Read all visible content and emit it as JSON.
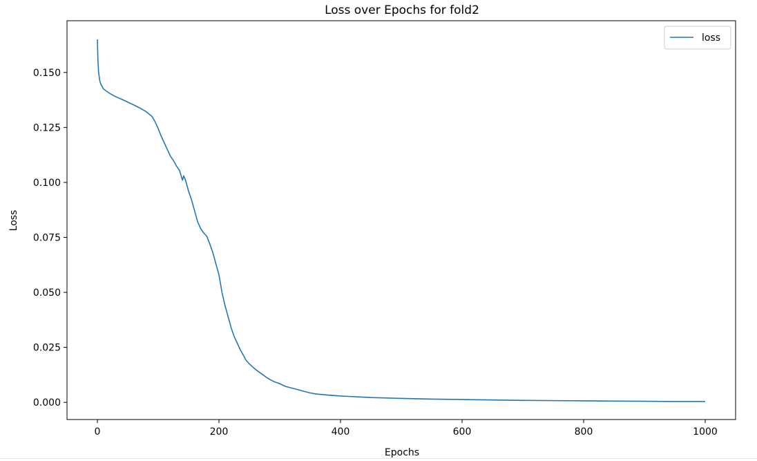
{
  "chart_data": {
    "type": "line",
    "title": "Loss over Epochs for fold2",
    "xlabel": "Epochs",
    "ylabel": "Loss",
    "xlim": [
      -50,
      1050
    ],
    "ylim": [
      -0.0078,
      0.1735
    ],
    "xticks": [
      0,
      200,
      400,
      600,
      800,
      1000
    ],
    "yticks": [
      0.0,
      0.025,
      0.05,
      0.075,
      0.1,
      0.125,
      0.15
    ],
    "xtick_labels": [
      "0",
      "200",
      "400",
      "600",
      "800",
      "1000"
    ],
    "ytick_labels": [
      "0.000",
      "0.025",
      "0.050",
      "0.075",
      "0.100",
      "0.125",
      "0.150"
    ],
    "grid": false,
    "legend_position": "top-right",
    "series": [
      {
        "name": "loss",
        "color": "#1f77b4",
        "x": [
          0,
          1,
          2,
          4,
          6,
          8,
          10,
          15,
          20,
          30,
          40,
          50,
          60,
          70,
          80,
          90,
          95,
          100,
          105,
          110,
          115,
          120,
          125,
          130,
          135,
          140,
          142,
          145,
          150,
          155,
          160,
          165,
          170,
          175,
          180,
          185,
          190,
          195,
          200,
          205,
          210,
          215,
          220,
          225,
          230,
          235,
          240,
          245,
          250,
          260,
          270,
          280,
          290,
          300,
          310,
          320,
          330,
          340,
          350,
          360,
          380,
          400,
          450,
          500,
          550,
          600,
          650,
          700,
          750,
          800,
          850,
          900,
          950,
          1000
        ],
        "y": [
          0.165,
          0.155,
          0.15,
          0.146,
          0.1445,
          0.1435,
          0.1425,
          0.1415,
          0.1405,
          0.139,
          0.1378,
          0.1365,
          0.1352,
          0.1338,
          0.1322,
          0.13,
          0.1275,
          0.1245,
          0.121,
          0.118,
          0.115,
          0.112,
          0.11,
          0.1075,
          0.1055,
          0.101,
          0.103,
          0.101,
          0.096,
          0.092,
          0.087,
          0.082,
          0.079,
          0.077,
          0.0755,
          0.072,
          0.068,
          0.063,
          0.058,
          0.05,
          0.044,
          0.039,
          0.034,
          0.03,
          0.027,
          0.024,
          0.0215,
          0.019,
          0.0175,
          0.015,
          0.013,
          0.011,
          0.0095,
          0.0085,
          0.0072,
          0.0065,
          0.0058,
          0.005,
          0.0043,
          0.0038,
          0.0033,
          0.0029,
          0.0022,
          0.0018,
          0.0015,
          0.0013,
          0.0011,
          0.0009,
          0.0008,
          0.0007,
          0.0006,
          0.0005,
          0.0004,
          0.0004
        ]
      }
    ]
  }
}
